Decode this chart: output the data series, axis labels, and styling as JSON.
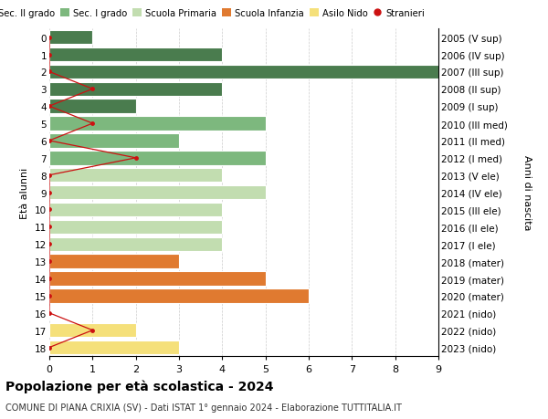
{
  "ages": [
    18,
    17,
    16,
    15,
    14,
    13,
    12,
    11,
    10,
    9,
    8,
    7,
    6,
    5,
    4,
    3,
    2,
    1,
    0
  ],
  "years": [
    "2005 (V sup)",
    "2006 (IV sup)",
    "2007 (III sup)",
    "2008 (II sup)",
    "2009 (I sup)",
    "2010 (III med)",
    "2011 (II med)",
    "2012 (I med)",
    "2013 (V ele)",
    "2014 (IV ele)",
    "2015 (III ele)",
    "2016 (II ele)",
    "2017 (I ele)",
    "2018 (mater)",
    "2019 (mater)",
    "2020 (mater)",
    "2021 (nido)",
    "2022 (nido)",
    "2023 (nido)"
  ],
  "bar_values": [
    1,
    4,
    9,
    4,
    2,
    5,
    3,
    5,
    4,
    5,
    4,
    4,
    4,
    3,
    5,
    6,
    0,
    2,
    3
  ],
  "bar_colors": [
    "#4a7c4e",
    "#4a7c4e",
    "#4a7c4e",
    "#4a7c4e",
    "#4a7c4e",
    "#7db87e",
    "#7db87e",
    "#7db87e",
    "#c2ddb0",
    "#c2ddb0",
    "#c2ddb0",
    "#c2ddb0",
    "#c2ddb0",
    "#e07a30",
    "#e07a30",
    "#e07a30",
    "#f5e07a",
    "#f5e07a",
    "#f5e07a"
  ],
  "stranieri_x": [
    0,
    0,
    0,
    1,
    0,
    1,
    0,
    2,
    0,
    0,
    0,
    0,
    0,
    0,
    0,
    0,
    0,
    1,
    0
  ],
  "color_sec2": "#4a7c4e",
  "color_sec1": "#7db87e",
  "color_prim": "#c2ddb0",
  "color_inf": "#e07a30",
  "color_nido": "#f5e07a",
  "color_stranieri": "#cc1111",
  "title_main": "Popolazione per età scolastica - 2024",
  "title_sub": "COMUNE DI PIANA CRIXIA (SV) - Dati ISTAT 1° gennaio 2024 - Elaborazione TUTTITALIA.IT",
  "ylabel_left": "Età alunni",
  "ylabel_right": "Anni di nascita",
  "xlim": [
    0,
    9
  ],
  "xticks": [
    0,
    1,
    2,
    3,
    4,
    5,
    6,
    7,
    8,
    9
  ],
  "legend_labels": [
    "Sec. II grado",
    "Sec. I grado",
    "Scuola Primaria",
    "Scuola Infanzia",
    "Asilo Nido",
    "Stranieri"
  ]
}
